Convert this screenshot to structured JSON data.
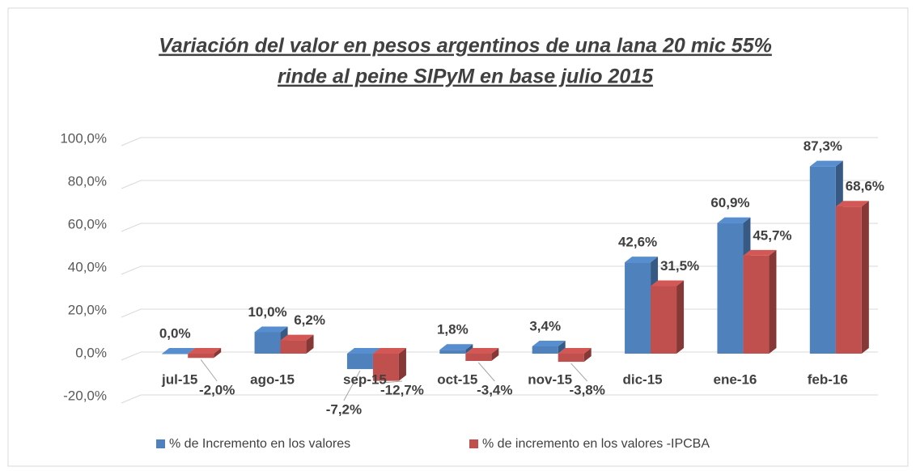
{
  "chart_data": {
    "type": "bar3d",
    "title": [
      "Variación del valor en pesos argentinos de una lana 20 mic 55%",
      "rinde al peine SIPyM en base julio 2015"
    ],
    "categories": [
      "jul-15",
      "ago-15",
      "sep-15",
      "oct-15",
      "nov-15",
      "dic-15",
      "ene-16",
      "feb-16"
    ],
    "series": [
      {
        "name": "% de Incremento en los valores",
        "color": "#4f81bd",
        "values": [
          0,
          10,
          -7.2,
          1.8,
          3.4,
          42.6,
          60.9,
          87.3
        ],
        "value_labels": [
          "0,0%",
          "10,0%",
          "-7,2%",
          "1,8%",
          "3,4%",
          "42,6%",
          "60,9%",
          "87,3%"
        ]
      },
      {
        "name": "% de incremento en los valores -IPCBA",
        "color": "#c0504d",
        "values": [
          -2.0,
          6.2,
          -12.7,
          -3.4,
          -3.8,
          31.5,
          45.7,
          68.6
        ],
        "value_labels": [
          "-2,0%",
          "6,2%",
          "-12,7%",
          "-3,4%",
          "-3,8%",
          "31,5%",
          "45,7%",
          "68,6%"
        ]
      }
    ],
    "ylim": [
      -20,
      100
    ],
    "yticks": [
      {
        "value": -20,
        "label": "-20,0%"
      },
      {
        "value": 0,
        "label": "0,0%"
      },
      {
        "value": 20,
        "label": "20,0%"
      },
      {
        "value": 40,
        "label": "40,0%"
      },
      {
        "value": 60,
        "label": "60,0%"
      },
      {
        "value": 80,
        "label": "80,0%"
      },
      {
        "value": 100,
        "label": "100,0%"
      }
    ],
    "grid": true,
    "legend": "bottom"
  }
}
